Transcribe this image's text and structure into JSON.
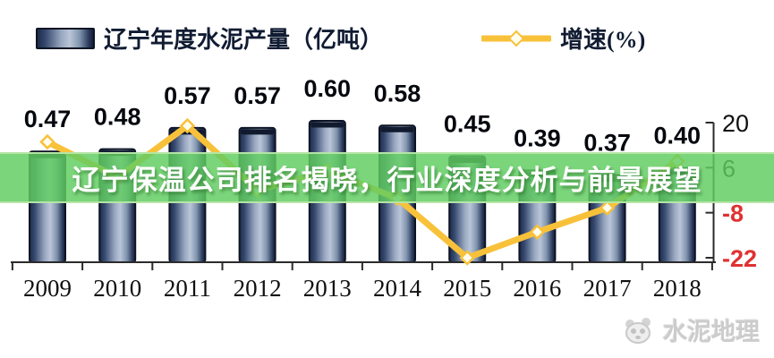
{
  "legend": {
    "bar_series_label": "辽宁年度水泥产量（亿吨）",
    "line_series_label": "增速(%)"
  },
  "banner": {
    "text": "辽宁保温公司排名揭晓，行业深度分析与前景展望"
  },
  "watermark": {
    "label": "水泥地理",
    "logo": "panda-logo"
  },
  "chart_data": {
    "type": "bar",
    "subtype": "bar-line-combo",
    "categories": [
      "2009",
      "2010",
      "2011",
      "2012",
      "2013",
      "2014",
      "2015",
      "2016",
      "2017",
      "2018"
    ],
    "series": [
      {
        "name": "辽宁年度水泥产量（亿吨）",
        "type": "bar",
        "axis": "left",
        "values": [
          0.47,
          0.48,
          0.57,
          0.57,
          0.6,
          0.58,
          0.45,
          0.39,
          0.37,
          0.4
        ],
        "labels": [
          "0.47",
          "0.48",
          "0.57",
          "0.57",
          "0.60",
          "0.58",
          "0.45",
          "0.39",
          "0.37",
          "0.40"
        ]
      },
      {
        "name": "增速(%)",
        "type": "line",
        "axis": "right",
        "values": [
          14,
          3,
          19,
          -1,
          5,
          -3.5,
          -22,
          -14,
          -6.5,
          8
        ]
      }
    ],
    "right_axis": {
      "ticks": [
        20,
        6,
        -8,
        -22
      ],
      "range": [
        -22,
        20
      ]
    },
    "left_axis": {
      "visible": false
    },
    "legend_position": "top",
    "grid": false
  },
  "colors": {
    "bar_dark": "#1f2c49",
    "bar_light": "#bac5d8",
    "bar_stroke": "#0d1424",
    "line": "#f8c13a",
    "marker_fill": "#fffdf0",
    "banner_green": "rgba(96,204,96,0.83)",
    "negative_tick": "#e03131",
    "positive_tick": "#101010",
    "value_label": "#06080f"
  }
}
